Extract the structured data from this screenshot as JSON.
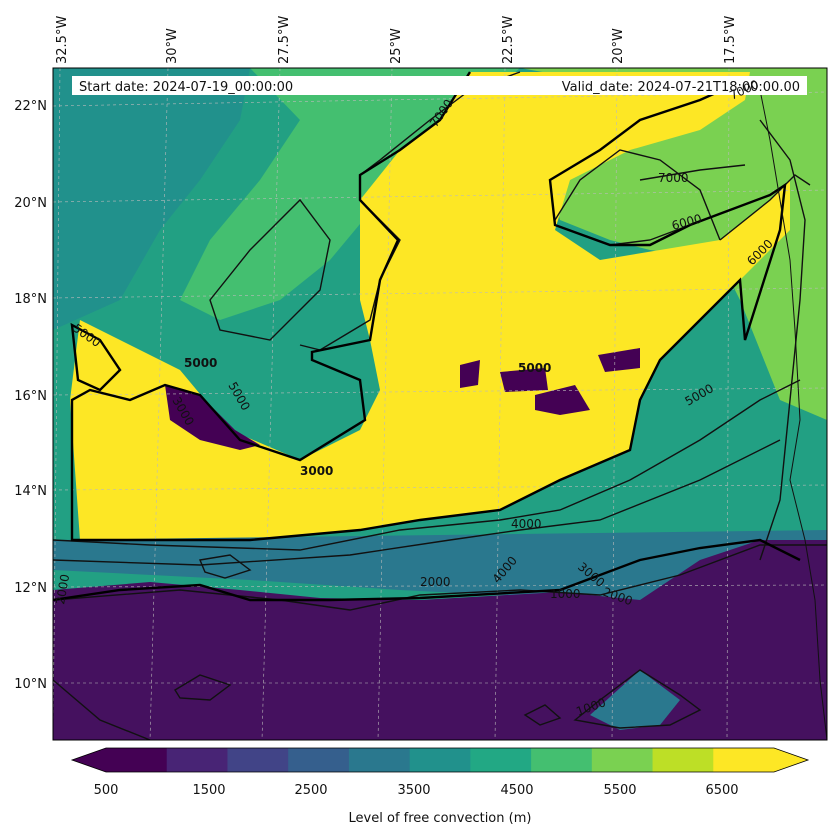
{
  "header": {
    "start_date": "Start date: 2024-07-19_00:00:00",
    "valid_date": "Valid_date: 2024-07-21T18:00:00.00"
  },
  "longitude_labels": [
    "32.5°W",
    "30°W",
    "27.5°W",
    "25°W",
    "22.5°W",
    "20°W",
    "17.5°W"
  ],
  "latitude_labels": [
    "22°N",
    "20°N",
    "18°N",
    "16°N",
    "14°N",
    "12°N",
    "10°N"
  ],
  "contour_labels": [
    "7000",
    "7000",
    "7000",
    "6000",
    "6000",
    "5000",
    "5000",
    "5000",
    "5000",
    "5000",
    "4000",
    "4000",
    "3000",
    "3000",
    "3000",
    "2000",
    "2000",
    "2000",
    "1000",
    "1000"
  ],
  "colorbar": {
    "label": "Level of free convection (m)",
    "tick_labels": [
      "500",
      "1500",
      "2500",
      "3500",
      "4500",
      "5500",
      "6500"
    ],
    "colors": [
      "#440154",
      "#482475",
      "#414487",
      "#355f8d",
      "#2a788e",
      "#21918c",
      "#22a884",
      "#44bf70",
      "#7ad151",
      "#bddf26",
      "#fde725"
    ]
  },
  "map_colors": {
    "ocean_low": "#45115f",
    "ocean_mid": "#2d7a8e",
    "mid_green": "#23a083",
    "high_green": "#7ad151",
    "max_yellow": "#fde725"
  }
}
